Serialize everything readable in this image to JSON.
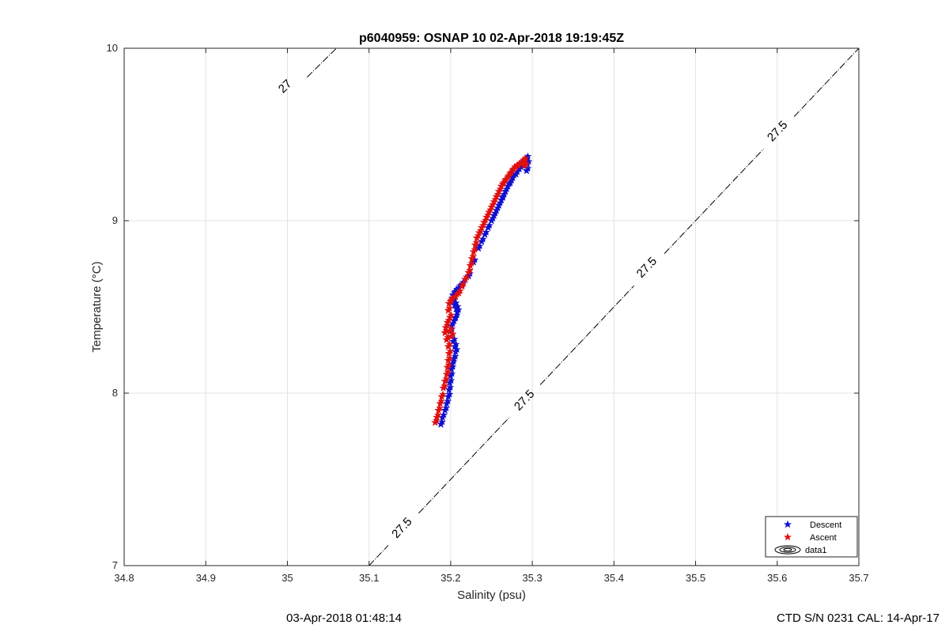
{
  "chart_data": {
    "type": "scatter",
    "title": "p6040959: OSNAP 10 02-Apr-2018 19:19:45Z",
    "xlabel": "Salinity (psu)",
    "ylabel": "Temperature (°C)",
    "xlim": [
      34.8,
      35.7
    ],
    "ylim": [
      7,
      10
    ],
    "xticks": [
      "34.8",
      "34.9",
      "35",
      "35.1",
      "35.2",
      "35.3",
      "35.4",
      "35.5",
      "35.6",
      "35.7"
    ],
    "yticks": [
      "7",
      "8",
      "9",
      "10"
    ],
    "grid": true,
    "legend_position": "bottom-right",
    "colors": {
      "descent": "#1010d0",
      "ascent": "#e01010",
      "axis": "#262626",
      "grid": "#e3e3e3"
    },
    "series": [
      {
        "name": "Descent",
        "marker": "pentagram",
        "x": [
          35.188,
          35.19,
          35.193,
          35.195,
          35.197,
          35.198,
          35.199,
          35.2,
          35.201,
          35.202,
          35.204,
          35.206,
          35.205,
          35.203,
          35.201,
          35.2,
          35.201,
          35.204,
          35.206,
          35.208,
          35.207,
          35.205,
          35.203,
          35.202,
          35.203,
          35.206,
          35.21,
          35.214,
          35.218,
          35.222,
          35.228,
          35.234,
          35.238,
          35.242,
          35.246,
          35.25,
          35.253,
          35.256,
          35.259,
          35.262,
          35.264,
          35.267,
          35.27,
          35.273,
          35.276,
          35.28,
          35.284,
          35.288,
          35.291,
          35.293,
          35.294,
          35.293
        ],
        "y": [
          7.82,
          7.86,
          7.9,
          7.94,
          7.98,
          8.02,
          8.06,
          8.1,
          8.14,
          8.17,
          8.2,
          8.24,
          8.27,
          8.3,
          8.33,
          8.36,
          8.39,
          8.42,
          8.44,
          8.47,
          8.49,
          8.51,
          8.53,
          8.55,
          8.57,
          8.59,
          8.61,
          8.63,
          8.66,
          8.68,
          8.76,
          8.84,
          8.88,
          8.92,
          8.96,
          9.0,
          9.03,
          9.06,
          9.09,
          9.12,
          9.14,
          9.17,
          9.2,
          9.22,
          9.25,
          9.27,
          9.3,
          9.32,
          9.34,
          9.36,
          9.33,
          9.29
        ]
      },
      {
        "name": "Ascent",
        "marker": "pentagram",
        "x": [
          35.181,
          35.183,
          35.185,
          35.187,
          35.189,
          35.191,
          35.193,
          35.195,
          35.196,
          35.197,
          35.198,
          35.197,
          35.195,
          35.193,
          35.194,
          35.196,
          35.199,
          35.201,
          35.199,
          35.197,
          35.198,
          35.201,
          35.206,
          35.21,
          35.214,
          35.218,
          35.222,
          35.224,
          35.226,
          35.228,
          35.23,
          35.232,
          35.235,
          35.238,
          35.241,
          35.244,
          35.247,
          35.25,
          35.253,
          35.256,
          35.259,
          35.262,
          35.265,
          35.268,
          35.271,
          35.274,
          35.277,
          35.28,
          35.283,
          35.286,
          35.288,
          35.29,
          35.291
        ],
        "y": [
          7.83,
          7.86,
          7.9,
          7.94,
          7.98,
          8.03,
          8.07,
          8.11,
          8.15,
          8.19,
          8.23,
          8.27,
          8.31,
          8.35,
          8.38,
          8.41,
          8.36,
          8.33,
          8.44,
          8.48,
          8.52,
          8.54,
          8.56,
          8.58,
          8.62,
          8.66,
          8.7,
          8.74,
          8.78,
          8.82,
          8.86,
          8.9,
          8.93,
          8.96,
          8.99,
          9.02,
          9.05,
          9.08,
          9.11,
          9.14,
          9.17,
          9.2,
          9.22,
          9.24,
          9.26,
          9.28,
          9.3,
          9.31,
          9.32,
          9.33,
          9.34,
          9.35,
          9.32
        ]
      },
      {
        "name": "data1",
        "marker": "contour",
        "contours": [
          {
            "label": "27",
            "x": [
              35.0,
              35.06
            ],
            "y": [
              9.72,
              10.0
            ],
            "label_at": [
              34.997,
              9.78
            ]
          },
          {
            "label": "27.5",
            "x": [
              35.1,
              35.7
            ],
            "y": [
              7.0,
              10.0
            ],
            "labels": [
              [
                35.14,
                7.22
              ],
              [
                35.29,
                7.96
              ],
              [
                35.44,
                8.73
              ],
              [
                35.6,
                9.52
              ]
            ]
          }
        ]
      }
    ]
  },
  "footer": {
    "left_timestamp": "03-Apr-2018 01:48:14",
    "right_text": "CTD S/N 0231  CAL: 14-Apr-17"
  }
}
